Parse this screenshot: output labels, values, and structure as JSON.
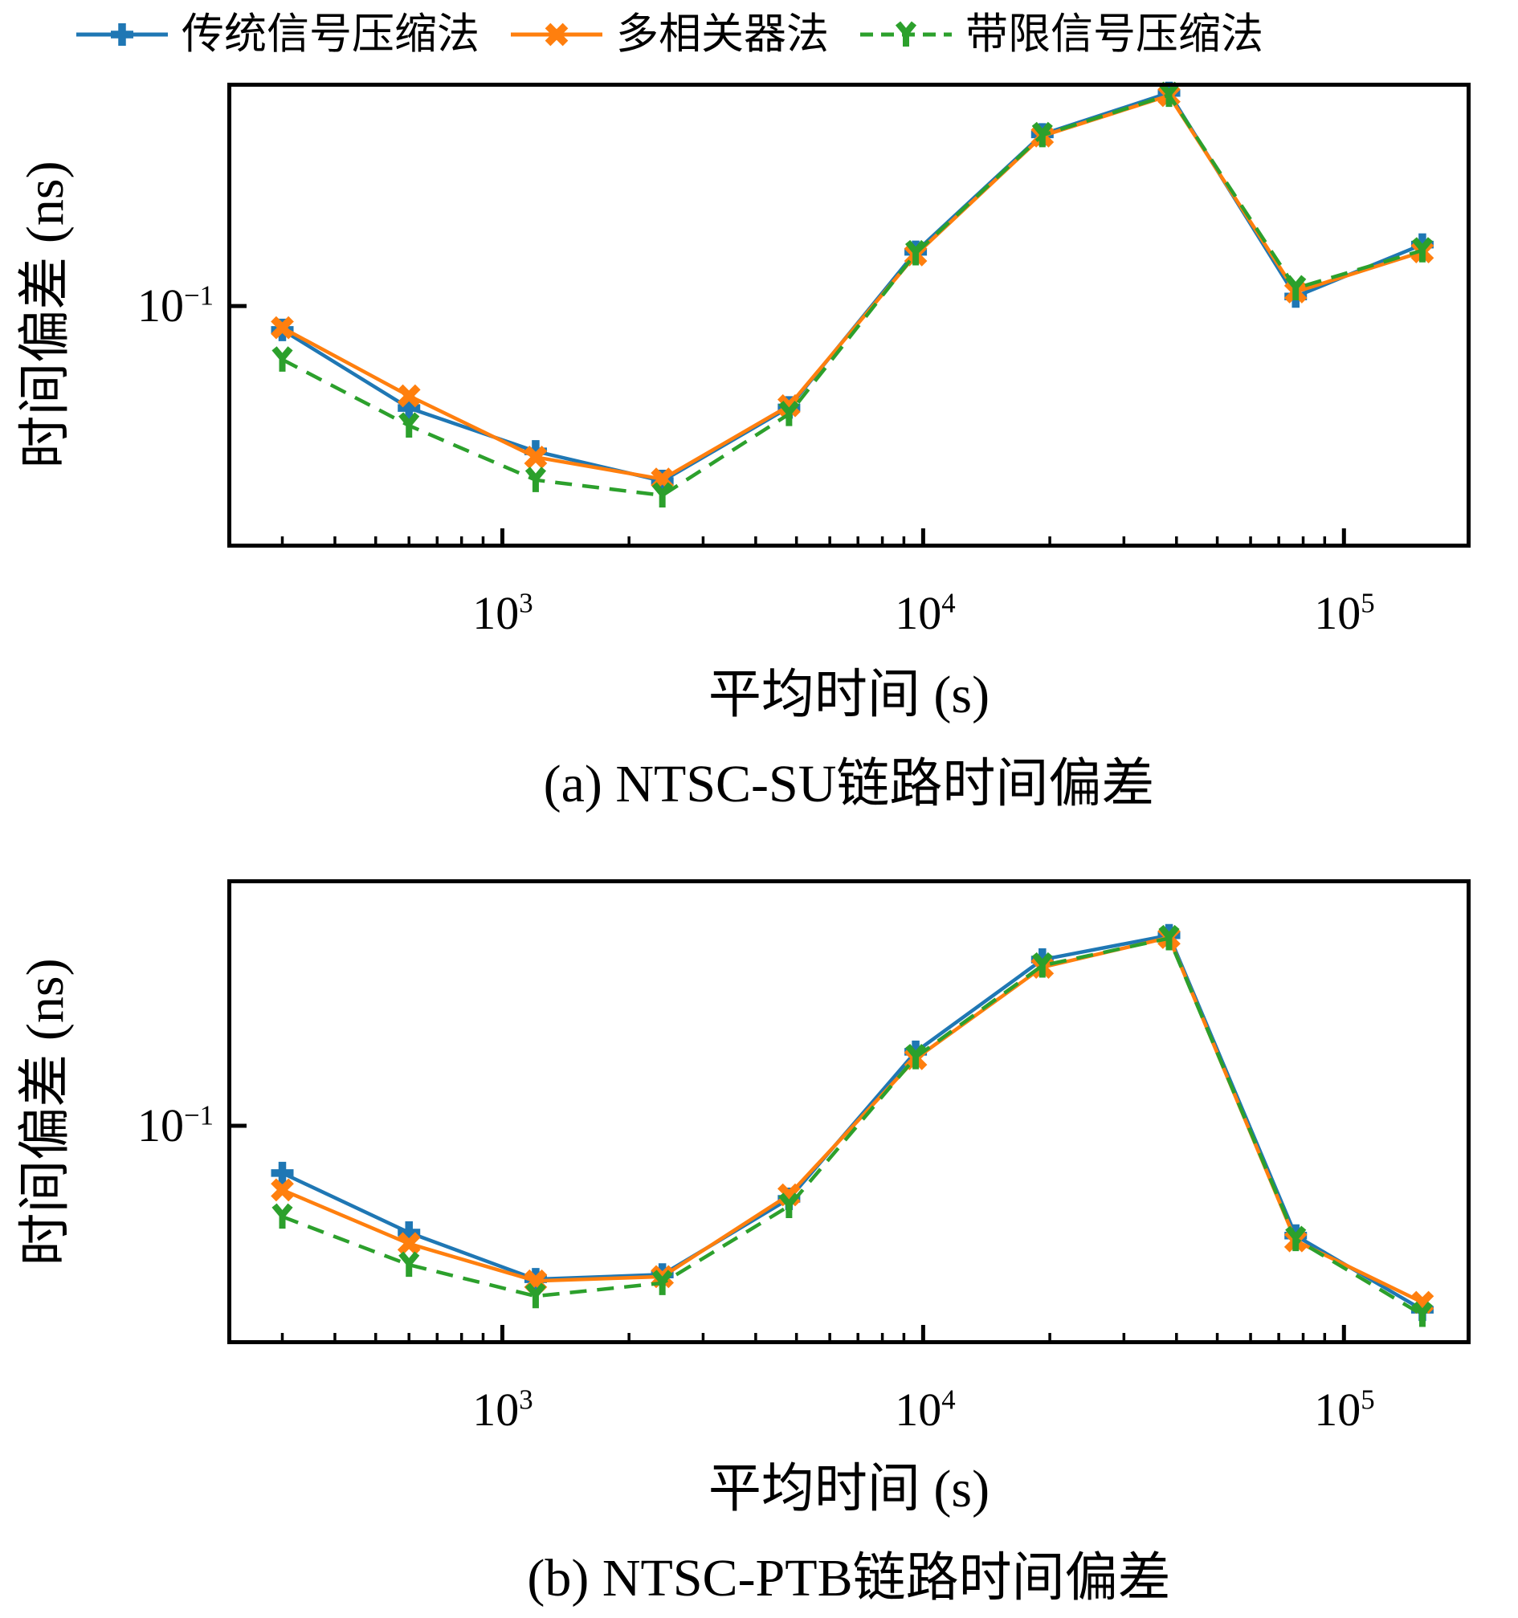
{
  "figure": {
    "background": "#ffffff",
    "frame_color": "#000000"
  },
  "legend": {
    "position": "top",
    "items": [
      {
        "label": "传统信号压缩法",
        "color": "#1f77b4",
        "marker": "plus",
        "linestyle": "solid"
      },
      {
        "label": "多相关器法",
        "color": "#ff7f0e",
        "marker": "x",
        "linestyle": "solid"
      },
      {
        "label": "带限信号压缩法",
        "color": "#2ca02c",
        "marker": "tri-down",
        "linestyle": "dashed"
      }
    ]
  },
  "chart_data": [
    {
      "id": "a",
      "type": "line",
      "title": "(a) NTSC-SU链路时间偏差",
      "xlabel": "平均时间 (s)",
      "ylabel": "时间偏差 (ns)",
      "xscale": "log",
      "yscale": "log",
      "xlim": [
        222,
        200000
      ],
      "ylim": [
        0.029,
        0.314
      ],
      "grid": false,
      "x_tick_values": [
        1000,
        10000,
        100000
      ],
      "x_tick_labels": [
        {
          "base": "10",
          "exp": "3"
        },
        {
          "base": "10",
          "exp": "4"
        },
        {
          "base": "10",
          "exp": "5"
        }
      ],
      "y_tick_values": [
        0.1
      ],
      "y_tick_labels": [
        {
          "base": "10",
          "exp": "−1"
        }
      ],
      "x": [
        300,
        600,
        1200,
        2400,
        4800,
        9600,
        19200,
        38400,
        76800,
        153600
      ],
      "series": [
        {
          "name": "传统信号压缩法",
          "values": [
            0.0885,
            0.0593,
            0.0475,
            0.0408,
            0.0595,
            0.132,
            0.241,
            0.298,
            0.105,
            0.137
          ]
        },
        {
          "name": "多相关器法",
          "values": [
            0.0895,
            0.0631,
            0.0461,
            0.0412,
            0.06,
            0.13,
            0.239,
            0.294,
            0.1075,
            0.132
          ]
        },
        {
          "name": "带限信号压缩法",
          "values": [
            0.076,
            0.0542,
            0.041,
            0.0379,
            0.0575,
            0.131,
            0.24,
            0.295,
            0.1095,
            0.133
          ]
        }
      ]
    },
    {
      "id": "b",
      "type": "line",
      "title": "(b) NTSC-PTB链路时间偏差",
      "xlabel": "平均时间 (s)",
      "ylabel": "时间偏差 (ns)",
      "xscale": "log",
      "yscale": "log",
      "xlim": [
        222,
        200000
      ],
      "ylim": [
        0.0327,
        0.353
      ],
      "grid": false,
      "x_tick_values": [
        1000,
        10000,
        100000
      ],
      "x_tick_labels": [
        {
          "base": "10",
          "exp": "3"
        },
        {
          "base": "10",
          "exp": "4"
        },
        {
          "base": "10",
          "exp": "5"
        }
      ],
      "y_tick_values": [
        0.1
      ],
      "y_tick_labels": [
        {
          "base": "10",
          "exp": "−1"
        }
      ],
      "x": [
        300,
        600,
        1200,
        2400,
        4800,
        9600,
        19200,
        38400,
        76800,
        153600
      ],
      "series": [
        {
          "name": "传统信号压缩法",
          "values": [
            0.0785,
            0.0579,
            0.0456,
            0.0467,
            0.0688,
            0.146,
            0.234,
            0.265,
            0.057,
            0.039
          ]
        },
        {
          "name": "多相关器法",
          "values": [
            0.072,
            0.0547,
            0.0452,
            0.0462,
            0.0702,
            0.141,
            0.225,
            0.262,
            0.0555,
            0.0405
          ]
        },
        {
          "name": "带限信号压缩法",
          "values": [
            0.0628,
            0.0491,
            0.0418,
            0.0447,
            0.0663,
            0.142,
            0.227,
            0.261,
            0.056,
            0.038
          ]
        }
      ]
    }
  ]
}
